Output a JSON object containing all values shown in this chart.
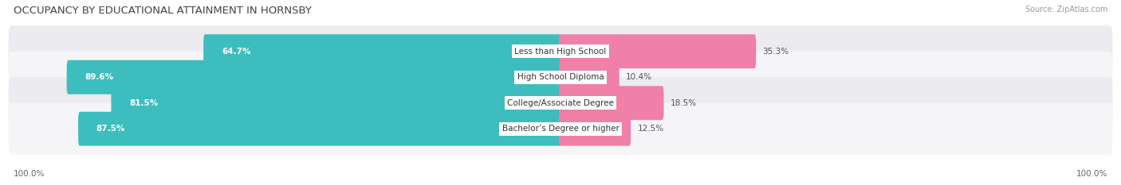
{
  "title": "OCCUPANCY BY EDUCATIONAL ATTAINMENT IN HORNSBY",
  "source": "Source: ZipAtlas.com",
  "categories": [
    "Less than High School",
    "High School Diploma",
    "College/Associate Degree",
    "Bachelor’s Degree or higher"
  ],
  "owner_pct": [
    64.7,
    89.6,
    81.5,
    87.5
  ],
  "renter_pct": [
    35.3,
    10.4,
    18.5,
    12.5
  ],
  "owner_color": "#3dbdbd",
  "renter_color": "#f080a8",
  "row_bg_even": "#ebebf0",
  "row_bg_odd": "#f5f5f8",
  "title_fontsize": 9.5,
  "label_fontsize": 7.5,
  "tick_fontsize": 7.5,
  "source_fontsize": 7,
  "legend_fontsize": 8,
  "axis_label_left": "100.0%",
  "axis_label_right": "100.0%"
}
